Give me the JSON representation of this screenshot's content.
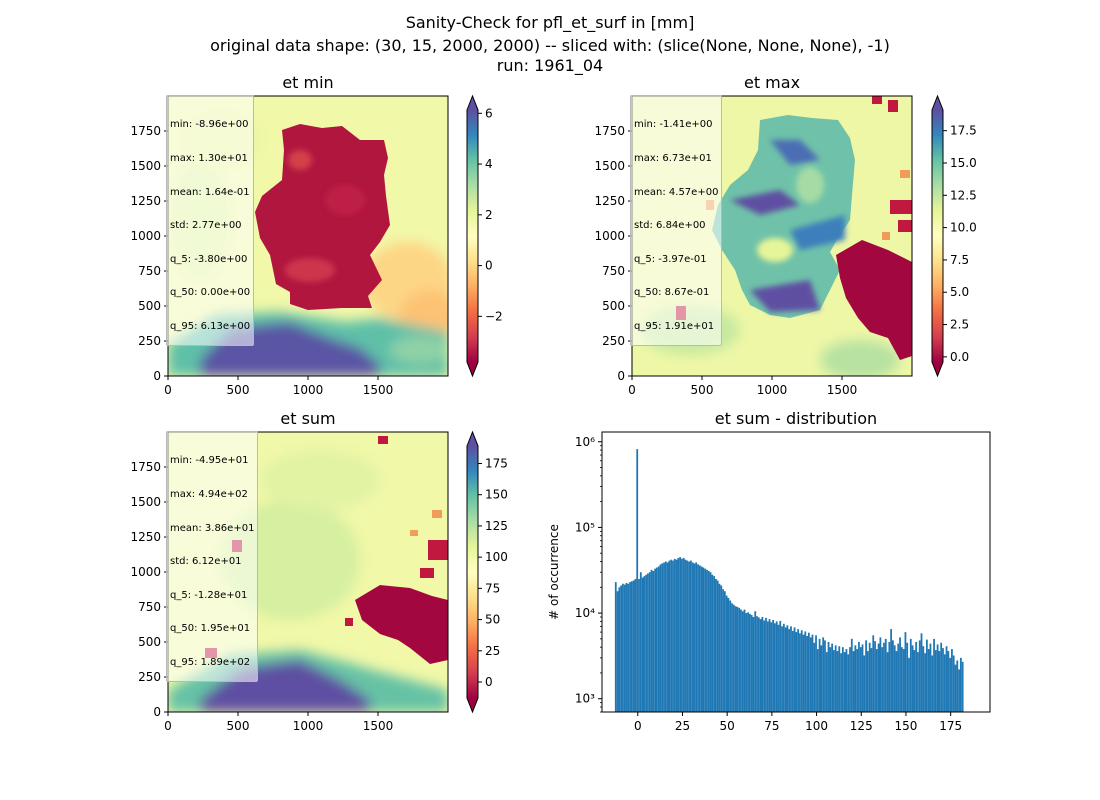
{
  "figure": {
    "title_lines": [
      "Sanity-Check for pfl_et_surf in [mm]",
      "original data shape: (30, 15, 2000, 2000) -- sliced with: (slice(None, None, None), -1)",
      "run: 1961_04"
    ]
  },
  "panels": [
    {
      "id": "et-min",
      "title": "et min",
      "xticks": [
        0,
        500,
        1000,
        1500
      ],
      "yticks": [
        0,
        250,
        500,
        750,
        1000,
        1250,
        1500,
        1750
      ],
      "colormap": "Spectral",
      "colorbar_ticks": [
        -2,
        0,
        2,
        4,
        6
      ],
      "colorbar_range": [
        -3.8,
        6.13
      ],
      "stats": [
        "min: -8.96e+00",
        "max: 1.30e+01",
        "mean: 1.64e-01",
        "std: 2.77e+00",
        "q_5: -3.80e+00",
        "q_50: 0.00e+00",
        "q_95: 6.13e+00"
      ]
    },
    {
      "id": "et-max",
      "title": "et max",
      "xticks": [
        0,
        500,
        1000,
        1500
      ],
      "yticks": [
        0,
        250,
        500,
        750,
        1000,
        1250,
        1500,
        1750
      ],
      "colormap": "Spectral",
      "colorbar_ticks": [
        0.0,
        2.5,
        5.0,
        7.5,
        10.0,
        12.5,
        15.0,
        17.5
      ],
      "colorbar_labels": [
        "0.0",
        "2.5",
        "5.0",
        "7.5",
        "10.0",
        "12.5",
        "15.0",
        "17.5"
      ],
      "colorbar_range": [
        -0.397,
        19.1
      ],
      "stats": [
        "min: -1.41e+00",
        "max: 6.73e+01",
        "mean: 4.57e+00",
        "std: 6.84e+00",
        "q_5: -3.97e-01",
        "q_50: 8.67e-01",
        "q_95: 1.91e+01"
      ]
    },
    {
      "id": "et-sum",
      "title": "et sum",
      "xticks": [
        0,
        500,
        1000,
        1500
      ],
      "yticks": [
        0,
        250,
        500,
        750,
        1000,
        1250,
        1500,
        1750
      ],
      "colormap": "Spectral",
      "colorbar_ticks": [
        0,
        25,
        50,
        75,
        100,
        125,
        150,
        175
      ],
      "colorbar_range": [
        -12.8,
        189
      ],
      "stats": [
        "min: -4.95e+01",
        "max: 4.94e+02",
        "mean: 3.86e+01",
        "std: 6.12e+01",
        "q_5: -1.28e+01",
        "q_50: 1.95e+01",
        "q_95: 1.89e+02"
      ]
    }
  ],
  "chart_data": {
    "type": "bar",
    "title": "et sum - distribution",
    "xlabel": "",
    "ylabel": "# of occurrence",
    "yscale": "log",
    "xlim": [
      -20,
      197
    ],
    "ylim": [
      700,
      1300000
    ],
    "xticks": [
      0,
      25,
      50,
      75,
      100,
      125,
      150,
      175
    ],
    "yticks": [
      {
        "value": 1000,
        "label": "10³"
      },
      {
        "value": 10000,
        "label": "10⁴"
      },
      {
        "value": 100000,
        "label": "10⁵"
      },
      {
        "value": 1000000,
        "label": "10⁶"
      }
    ],
    "bin_start": -12.8,
    "bin_width": 1.0,
    "color": "#1f77b4",
    "series": [
      {
        "values": [
          23000,
          18000,
          20000,
          21000,
          22000,
          21500,
          22500,
          22000,
          23000,
          23500,
          24000,
          25000,
          820000,
          25000,
          30000,
          26000,
          27000,
          28000,
          29000,
          30000,
          32000,
          31000,
          33000,
          34000,
          35000,
          37000,
          38000,
          39000,
          40000,
          39000,
          41000,
          42000,
          41000,
          43000,
          42000,
          44000,
          45000,
          43000,
          44000,
          42000,
          41000,
          40000,
          41000,
          39000,
          38000,
          39000,
          37000,
          36000,
          35000,
          34000,
          33000,
          32000,
          31000,
          30000,
          28000,
          27000,
          25000,
          24000,
          22000,
          21000,
          19000,
          18000,
          16000,
          15000,
          14000,
          13000,
          12500,
          12000,
          11800,
          11500,
          11000,
          10500,
          11000,
          10000,
          10200,
          9800,
          9500,
          9000,
          10500,
          9200,
          8900,
          8500,
          9000,
          8200,
          8800,
          8000,
          8500,
          7800,
          8300,
          7600,
          8000,
          7300,
          8100,
          7000,
          7500,
          6800,
          7200,
          6500,
          7000,
          6200,
          6800,
          6000,
          6500,
          5800,
          6300,
          5600,
          6100,
          5400,
          5900,
          5200,
          5600,
          4500,
          5500,
          3800,
          5000,
          4200,
          5200,
          4800,
          3500,
          4600,
          4000,
          4400,
          3700,
          4200,
          3600,
          4100,
          3400,
          4000,
          3500,
          3800,
          3300,
          4000,
          5000,
          3600,
          4200,
          3800,
          4600,
          4000,
          4300,
          3200,
          4800,
          3600,
          4500,
          3900,
          5500,
          4700,
          3800,
          4400,
          5200,
          4000,
          4500,
          5000,
          3500,
          4600,
          6500,
          4800,
          4200,
          3600,
          4400,
          5200,
          4000,
          3800,
          6000,
          4500,
          3000,
          5000,
          4200,
          3700,
          4600,
          3500,
          4800,
          5800,
          4100,
          3400,
          4900,
          3800,
          4400,
          3200,
          5000,
          3700,
          4300,
          3600,
          4500,
          3900,
          3300,
          4100,
          3600,
          3000,
          3800,
          3200,
          2500,
          2800,
          2200,
          3000,
          2700
        ]
      }
    ]
  }
}
